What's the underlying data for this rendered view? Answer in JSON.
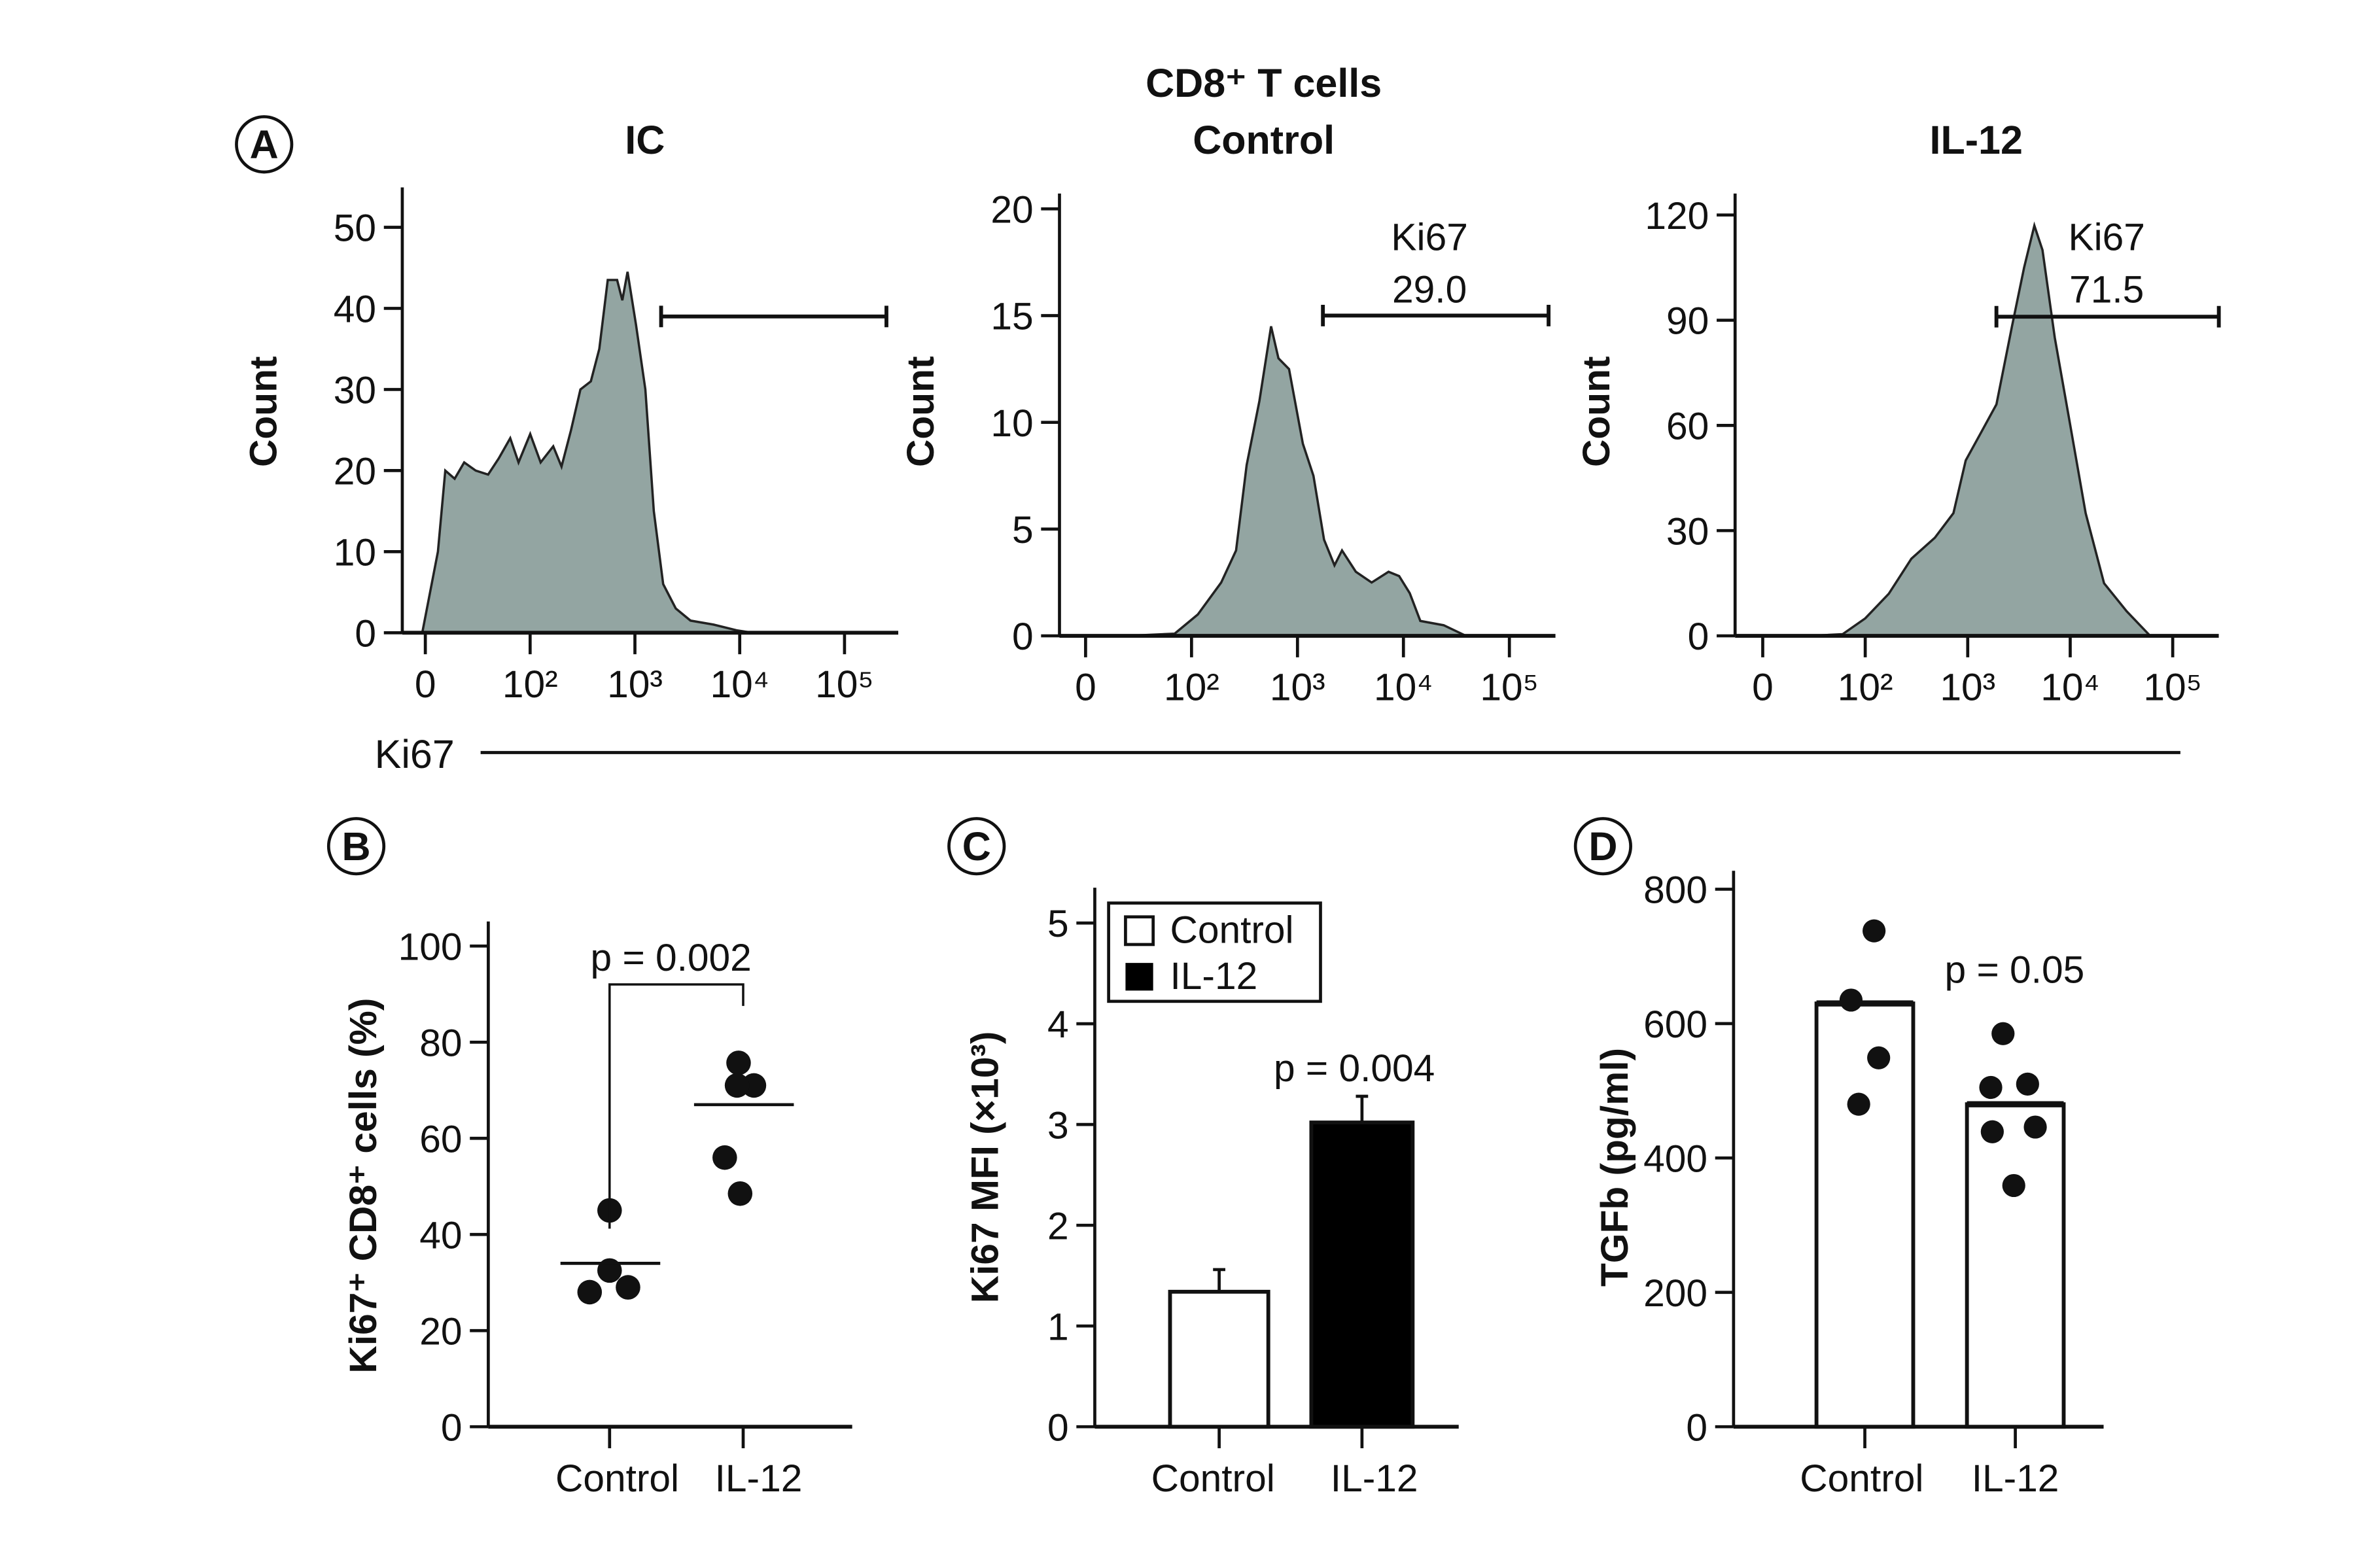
{
  "figure_title": "CD8⁺ T cells",
  "panel_letters": {
    "a": "A",
    "b": "B",
    "c": "C",
    "d": "D"
  },
  "ki67_axis_label": "Ki67",
  "colors": {
    "histogram_fill": "#93a5a2",
    "outline": "#222222",
    "bar_il12": "#000000",
    "bar_control": "#ffffff"
  },
  "chart_data": [
    {
      "type": "area",
      "panel": "A",
      "title": "IC",
      "ylabel": "Count",
      "ylim": [
        0,
        50
      ],
      "yticks": [
        0,
        10,
        20,
        30,
        40,
        50
      ],
      "xticks": [
        "0",
        "10²",
        "10³",
        "10⁴",
        "10⁵"
      ],
      "x_scale": "tick index (0,10²,10³,10⁴,10⁵)",
      "gate": {
        "from": 2.25,
        "to": 4.4,
        "level": 39,
        "label": "",
        "value": ""
      },
      "points": [
        [
          -0.03,
          0
        ],
        [
          0.12,
          10
        ],
        [
          0.19,
          20
        ],
        [
          0.28,
          19
        ],
        [
          0.37,
          21
        ],
        [
          0.48,
          20
        ],
        [
          0.6,
          19.5
        ],
        [
          0.7,
          21.5
        ],
        [
          0.81,
          24
        ],
        [
          0.89,
          21
        ],
        [
          1.0,
          24.5
        ],
        [
          1.1,
          21
        ],
        [
          1.22,
          23
        ],
        [
          1.3,
          20.5
        ],
        [
          1.39,
          25
        ],
        [
          1.48,
          30
        ],
        [
          1.58,
          31
        ],
        [
          1.66,
          35
        ],
        [
          1.74,
          43.5
        ],
        [
          1.83,
          43.5
        ],
        [
          1.88,
          41
        ],
        [
          1.93,
          44.5
        ],
        [
          2.01,
          38
        ],
        [
          2.1,
          30
        ],
        [
          2.18,
          15
        ],
        [
          2.27,
          6
        ],
        [
          2.39,
          3
        ],
        [
          2.53,
          1.5
        ],
        [
          2.75,
          1
        ],
        [
          2.97,
          0.3
        ],
        [
          3.12,
          0
        ]
      ]
    },
    {
      "type": "area",
      "panel": "A",
      "title": "Control",
      "ylabel": "Count",
      "ylim": [
        0,
        20
      ],
      "yticks": [
        0,
        5,
        10,
        15,
        20
      ],
      "xticks": [
        "0",
        "10²",
        "10³",
        "10⁴",
        "10⁵"
      ],
      "gate": {
        "from": 2.24,
        "to": 4.37,
        "level": 15,
        "label": "Ki67",
        "value": "29.0"
      },
      "points": [
        [
          0.4,
          0
        ],
        [
          0.84,
          0.1
        ],
        [
          1.06,
          1
        ],
        [
          1.28,
          2.5
        ],
        [
          1.42,
          4
        ],
        [
          1.52,
          8
        ],
        [
          1.64,
          11
        ],
        [
          1.75,
          14.5
        ],
        [
          1.82,
          13
        ],
        [
          1.92,
          12.5
        ],
        [
          2.05,
          9
        ],
        [
          2.15,
          7.5
        ],
        [
          2.25,
          4.5
        ],
        [
          2.35,
          3.3
        ],
        [
          2.42,
          4
        ],
        [
          2.55,
          3
        ],
        [
          2.7,
          2.5
        ],
        [
          2.86,
          3
        ],
        [
          2.96,
          2.8
        ],
        [
          3.06,
          2
        ],
        [
          3.16,
          0.7
        ],
        [
          3.38,
          0.5
        ],
        [
          3.59,
          0
        ]
      ]
    },
    {
      "type": "area",
      "panel": "A",
      "title": "IL-12",
      "ylabel": "Count",
      "ylim": [
        0,
        120
      ],
      "yticks": [
        0,
        30,
        60,
        90,
        120
      ],
      "xticks": [
        "0",
        "10²",
        "10³",
        "10⁴",
        "10⁵"
      ],
      "gate": {
        "from": 2.28,
        "to": 4.45,
        "level": 91,
        "label": "Ki67",
        "value": "71.5"
      },
      "points": [
        [
          0.48,
          0
        ],
        [
          0.78,
          0.5
        ],
        [
          1.0,
          5
        ],
        [
          1.23,
          12
        ],
        [
          1.45,
          22
        ],
        [
          1.68,
          28
        ],
        [
          1.86,
          35
        ],
        [
          1.98,
          50
        ],
        [
          2.13,
          58
        ],
        [
          2.28,
          66
        ],
        [
          2.43,
          88
        ],
        [
          2.55,
          105
        ],
        [
          2.65,
          117
        ],
        [
          2.73,
          110
        ],
        [
          2.85,
          85
        ],
        [
          3.0,
          60
        ],
        [
          3.15,
          35
        ],
        [
          3.33,
          15
        ],
        [
          3.55,
          7
        ],
        [
          3.78,
          0
        ]
      ]
    },
    {
      "type": "scatter",
      "panel": "B",
      "ylabel": "Ki67⁺ CD8⁺ cells (%)",
      "ylim": [
        0,
        100
      ],
      "yticks": [
        0,
        20,
        40,
        60,
        80,
        100
      ],
      "categories": [
        "Control",
        "IL-12"
      ],
      "series": [
        {
          "name": "Control",
          "values": [
            28,
            29,
            32.5,
            45
          ],
          "mean": 34
        },
        {
          "name": "IL-12",
          "values": [
            48.5,
            56,
            71,
            71,
            75.7
          ],
          "mean": 67
        }
      ],
      "annotation": "p = 0.002"
    },
    {
      "type": "bar",
      "panel": "C",
      "ylabel": "Ki67 MFI (×10³)",
      "ylim": [
        0,
        5
      ],
      "yticks": [
        0,
        1,
        2,
        3,
        4,
        5
      ],
      "categories": [
        "Control",
        "IL-12"
      ],
      "values": [
        1.34,
        3.02
      ],
      "errors": [
        0.22,
        0.26
      ],
      "legend": [
        "Control",
        "IL-12"
      ],
      "legend_position": "top-left",
      "annotation": "p = 0.004"
    },
    {
      "type": "bar",
      "panel": "D",
      "ylabel": "TGFb (pg/ml)",
      "ylim": [
        0,
        800
      ],
      "yticks": [
        0,
        200,
        400,
        600,
        800
      ],
      "categories": [
        "Control",
        "IL-12"
      ],
      "values": [
        630,
        480
      ],
      "points": [
        [
          738,
          635,
          549,
          480
        ],
        [
          585,
          505,
          510,
          439,
          446,
          359
        ]
      ],
      "annotation": "p = 0.05"
    }
  ]
}
